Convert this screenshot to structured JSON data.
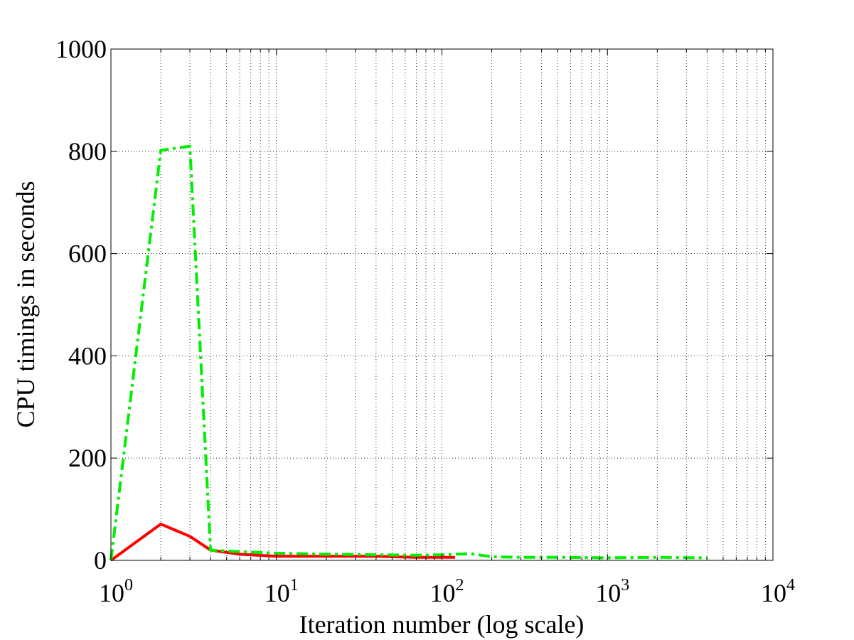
{
  "chart_data": {
    "type": "line",
    "xlabel": "Iteration number (log scale)",
    "ylabel": "CPU timings in seconds",
    "xscale": "log",
    "xlim": [
      1,
      10000
    ],
    "ylim": [
      0,
      1000
    ],
    "grid": true,
    "x_ticks": [
      {
        "value": 1,
        "base": "10",
        "exp": "0"
      },
      {
        "value": 10,
        "base": "10",
        "exp": "1"
      },
      {
        "value": 100,
        "base": "10",
        "exp": "2"
      },
      {
        "value": 1000,
        "base": "10",
        "exp": "3"
      },
      {
        "value": 10000,
        "base": "10",
        "exp": "4"
      }
    ],
    "y_ticks": [
      "0",
      "200",
      "400",
      "600",
      "800",
      "1000"
    ],
    "series": [
      {
        "color": "#ff0000",
        "style": "solid",
        "points": [
          [
            1,
            0
          ],
          [
            2,
            71
          ],
          [
            3,
            47
          ],
          [
            4,
            20
          ],
          [
            6,
            12
          ],
          [
            10,
            8
          ],
          [
            20,
            8
          ],
          [
            40,
            8
          ],
          [
            70,
            6
          ],
          [
            120,
            6
          ]
        ]
      },
      {
        "color": "#00ee00",
        "style": "dashdot",
        "points": [
          [
            1,
            0
          ],
          [
            2,
            802
          ],
          [
            3,
            810
          ],
          [
            4,
            20
          ],
          [
            6,
            17
          ],
          [
            10,
            14
          ],
          [
            20,
            12
          ],
          [
            40,
            11
          ],
          [
            70,
            10
          ],
          [
            100,
            11
          ],
          [
            150,
            13
          ],
          [
            200,
            7
          ],
          [
            300,
            6
          ],
          [
            500,
            6
          ],
          [
            1000,
            5
          ],
          [
            2000,
            6
          ],
          [
            4000,
            5
          ]
        ]
      }
    ]
  }
}
